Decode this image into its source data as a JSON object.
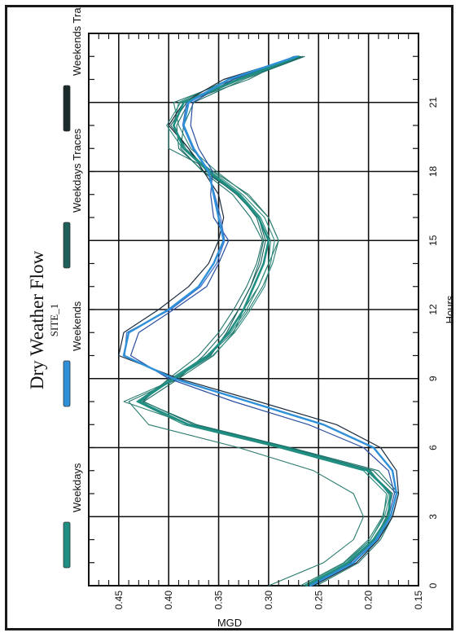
{
  "chart_data": {
    "type": "line",
    "title": "Dry Weather Flow",
    "subtitle": "SITE_1",
    "xlabel": "Hours",
    "ylabel": "MGD",
    "xlim": [
      0,
      24
    ],
    "ylim": [
      0.15,
      0.48
    ],
    "x_ticks": [
      "0",
      "3",
      "6",
      "9",
      "12",
      "15",
      "18",
      "21"
    ],
    "y_ticks": [
      "0.15",
      "0.20",
      "0.25",
      "0.30",
      "0.35",
      "0.40",
      "0.45"
    ],
    "grid": true,
    "orientation": "rotated-90-ccw",
    "legend_position": "top",
    "legend": [
      {
        "label": "Weekdays",
        "color": "#1e8f82"
      },
      {
        "label": "Weekends",
        "color": "#2e90d8"
      },
      {
        "label": "Weekdays Traces",
        "color": "#1f5f5a"
      },
      {
        "label": "Weekends Traces",
        "color": "#1b2b2b"
      }
    ],
    "x": [
      0,
      1,
      2,
      3,
      4,
      5,
      6,
      7,
      8,
      9,
      10,
      11,
      12,
      13,
      14,
      15,
      16,
      17,
      18,
      19,
      20,
      21,
      22,
      23
    ],
    "series": [
      {
        "name": "Weekdays",
        "color": "#1e8f82",
        "width": 2.6,
        "values": [
          0.262,
          0.22,
          0.195,
          0.18,
          0.178,
          0.2,
          0.285,
          0.38,
          0.43,
          0.395,
          0.36,
          0.34,
          0.325,
          0.315,
          0.305,
          0.3,
          0.31,
          0.33,
          0.36,
          0.385,
          0.395,
          0.385,
          0.33,
          0.27
        ]
      },
      {
        "name": "Weekends",
        "color": "#2e90d8",
        "width": 2.4,
        "values": [
          0.258,
          0.215,
          0.192,
          0.178,
          0.172,
          0.176,
          0.195,
          0.245,
          0.32,
          0.395,
          0.445,
          0.44,
          0.4,
          0.37,
          0.355,
          0.345,
          0.35,
          0.355,
          0.36,
          0.375,
          0.385,
          0.38,
          0.34,
          0.272
        ]
      },
      {
        "name": "Weekdays Trace 1",
        "color": "#2a7a6e",
        "width": 1.1,
        "values": [
          0.3,
          0.245,
          0.215,
          0.205,
          0.215,
          0.255,
          0.33,
          0.42,
          0.44,
          0.39,
          0.355,
          0.335,
          0.325,
          0.31,
          0.3,
          0.29,
          0.3,
          0.32,
          0.355,
          0.4,
          0.4,
          0.385,
          0.32,
          0.275
        ]
      },
      {
        "name": "Weekdays Trace 2",
        "color": "#1d6a64",
        "width": 1.1,
        "values": [
          0.255,
          0.215,
          0.19,
          0.178,
          0.172,
          0.195,
          0.28,
          0.375,
          0.425,
          0.39,
          0.365,
          0.345,
          0.33,
          0.318,
          0.31,
          0.305,
          0.312,
          0.33,
          0.365,
          0.39,
          0.392,
          0.38,
          0.335,
          0.268
        ]
      },
      {
        "name": "Weekdays Trace 3",
        "color": "#248a7c",
        "width": 1.1,
        "values": [
          0.262,
          0.222,
          0.198,
          0.185,
          0.182,
          0.205,
          0.29,
          0.385,
          0.432,
          0.398,
          0.362,
          0.338,
          0.322,
          0.31,
          0.3,
          0.298,
          0.308,
          0.328,
          0.358,
          0.383,
          0.395,
          0.39,
          0.34,
          0.27
        ]
      },
      {
        "name": "Weekdays Trace 4",
        "color": "#1b5e5a",
        "width": 1.1,
        "values": [
          0.258,
          0.218,
          0.194,
          0.182,
          0.176,
          0.2,
          0.282,
          0.382,
          0.428,
          0.395,
          0.358,
          0.342,
          0.33,
          0.318,
          0.308,
          0.303,
          0.31,
          0.332,
          0.362,
          0.38,
          0.398,
          0.382,
          0.328,
          0.266
        ]
      },
      {
        "name": "Weekdays Trace 5",
        "color": "#2c7f72",
        "width": 1.1,
        "values": [
          0.268,
          0.225,
          0.2,
          0.186,
          0.18,
          0.198,
          0.288,
          0.378,
          0.445,
          0.392,
          0.36,
          0.336,
          0.32,
          0.306,
          0.296,
          0.29,
          0.3,
          0.322,
          0.352,
          0.378,
          0.39,
          0.395,
          0.335,
          0.272
        ]
      },
      {
        "name": "Weekdays Trace 6",
        "color": "#1f746b",
        "width": 1.1,
        "values": [
          0.252,
          0.21,
          0.188,
          0.176,
          0.17,
          0.19,
          0.278,
          0.372,
          0.426,
          0.4,
          0.37,
          0.35,
          0.335,
          0.322,
          0.312,
          0.306,
          0.318,
          0.336,
          0.366,
          0.388,
          0.385,
          0.375,
          0.325,
          0.264
        ]
      },
      {
        "name": "Weekdays Trace 7",
        "color": "#2f8d80",
        "width": 1.1,
        "values": [
          0.265,
          0.224,
          0.198,
          0.184,
          0.178,
          0.202,
          0.284,
          0.382,
          0.43,
          0.394,
          0.356,
          0.334,
          0.318,
          0.304,
          0.298,
          0.294,
          0.304,
          0.326,
          0.356,
          0.386,
          0.402,
          0.388,
          0.332,
          0.27
        ]
      },
      {
        "name": "Weekends Trace 1",
        "color": "#1c2c3c",
        "width": 1.2,
        "values": [
          0.255,
          0.212,
          0.19,
          0.176,
          0.17,
          0.172,
          0.188,
          0.232,
          0.31,
          0.39,
          0.45,
          0.445,
          0.41,
          0.38,
          0.36,
          0.35,
          0.345,
          0.35,
          0.365,
          0.38,
          0.4,
          0.385,
          0.345,
          0.27
        ]
      },
      {
        "name": "Weekends Trace 2",
        "color": "#2a4fa0",
        "width": 1.2,
        "values": [
          0.26,
          0.218,
          0.195,
          0.18,
          0.174,
          0.18,
          0.205,
          0.26,
          0.335,
          0.4,
          0.438,
          0.43,
          0.395,
          0.362,
          0.35,
          0.34,
          0.355,
          0.358,
          0.356,
          0.37,
          0.378,
          0.376,
          0.336,
          0.274
        ]
      },
      {
        "name": "Weekends Trace 3",
        "color": "#3a6cc4",
        "width": 1.2,
        "values": [
          0.262,
          0.216,
          0.193,
          0.178,
          0.172,
          0.176,
          0.195,
          0.245,
          0.32,
          0.396,
          0.444,
          0.442,
          0.398,
          0.368,
          0.352,
          0.344,
          0.348,
          0.354,
          0.36,
          0.376,
          0.386,
          0.382,
          0.34,
          0.272
        ]
      }
    ]
  }
}
